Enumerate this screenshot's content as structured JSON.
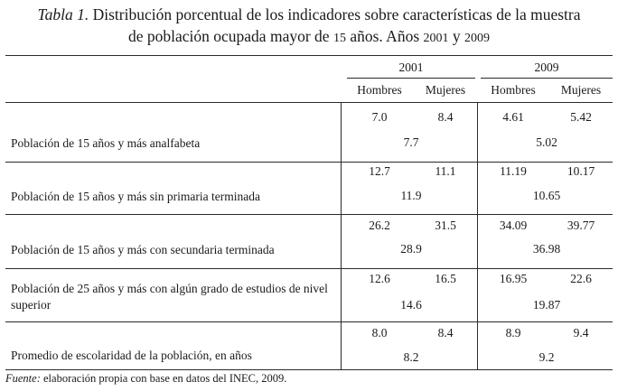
{
  "title": {
    "label": "Tabla 1.",
    "line1": "Distribución porcentual de los indicadores sobre características de la muestra",
    "line2_a": "de población ocupada mayor de",
    "line2_num1": "15",
    "line2_b": "años. Años",
    "line2_num2": "2001",
    "line2_c": "y",
    "line2_num3": "2009"
  },
  "header": {
    "year1": "2001",
    "year2": "2009",
    "men": "Hombres",
    "women": "Mujeres"
  },
  "rows": [
    {
      "label": "Población de 15 años y más analfabeta",
      "h2001": "7.0",
      "m2001": "8.4",
      "h2009": "4.61",
      "m2009": "5.42",
      "t2001": "7.7",
      "t2009": "5.02"
    },
    {
      "label": "Población de 15 años y más sin primaria terminada",
      "h2001": "12.7",
      "m2001": "11.1",
      "h2009": "11.19",
      "m2009": "10.17",
      "t2001": "11.9",
      "t2009": "10.65"
    },
    {
      "label": "Población de 15 años y más con secundaria terminada",
      "h2001": "26.2",
      "m2001": "31.5",
      "h2009": "34.09",
      "m2009": "39.77",
      "t2001": "28.9",
      "t2009": "36.98"
    },
    {
      "label_line1": "Población de 25 años y más con algún grado de estudios de nivel",
      "label_line2": "superior",
      "h2001": "12.6",
      "m2001": "16.5",
      "h2009": "16.95",
      "m2009": "22.6",
      "t2001": "14.6",
      "t2009": "19.87"
    },
    {
      "label": "Promedio de escolaridad de la población, en años",
      "h2001": "8.0",
      "m2001": "8.4",
      "h2009": "8.9",
      "m2009": "9.4",
      "t2001": "8.2",
      "t2009": "9.2"
    }
  ],
  "footnote": {
    "label": "Fuente:",
    "text_a": "elaboración propia con base en datos del",
    "inec": "INEC",
    "text_b": ", 2009."
  }
}
